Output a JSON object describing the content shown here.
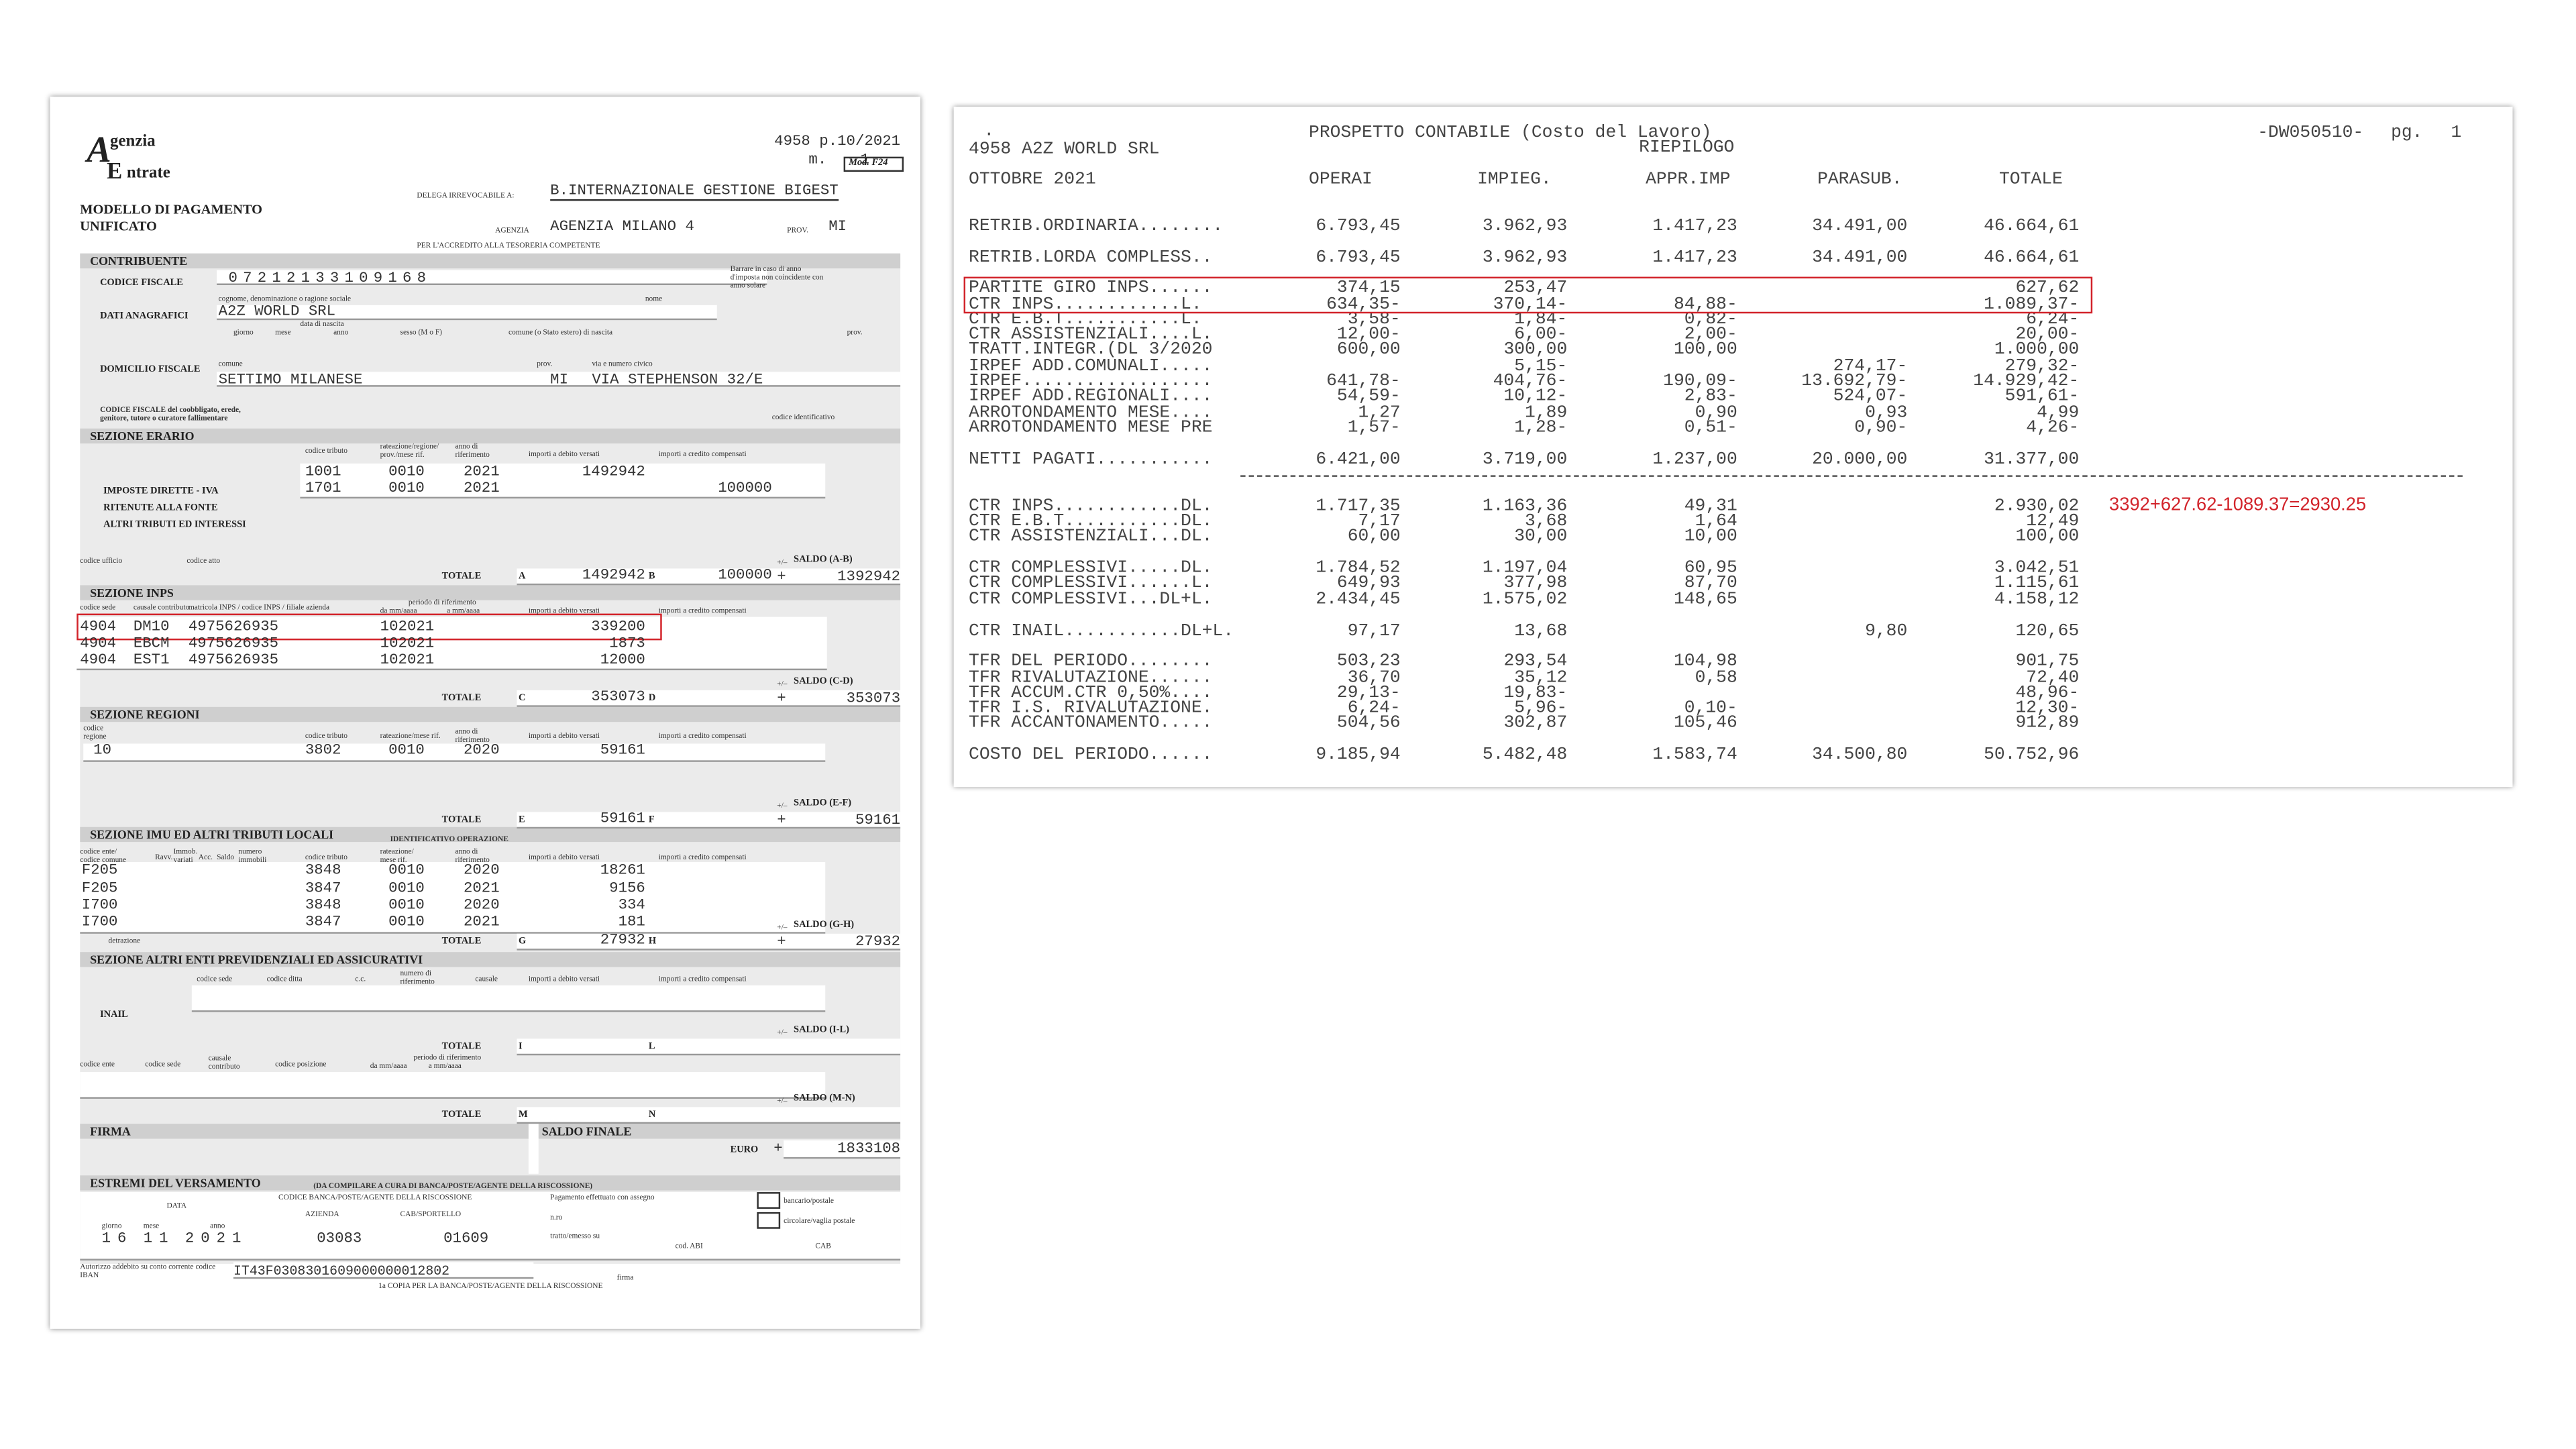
{
  "f24": {
    "logo": {
      "a": "A",
      "genzia": "genzia",
      "e": "E",
      "ntrate": "ntrate"
    },
    "protocol": "4958 p.10/2021",
    "m_label": "m.",
    "m_value": "1",
    "model": "Mod. F24",
    "title": "MODELLO DI PAGAMENTO UNIFICATO",
    "delega_label": "DELEGA IRREVOCABILE A:",
    "delega": "B.INTERNAZIONALE GESTIONE BIGEST",
    "agenzia_label": "AGENZIA",
    "agenzia": "AGENZIA MILANO 4",
    "prov_label": "PROV.",
    "prov": "MI",
    "accredito": "PER L'ACCREDITO ALLA TESORERIA COMPETENTE",
    "contribuente": {
      "header": "CONTRIBUENTE",
      "cf_label": "CODICE FISCALE",
      "cf": "07212133109168",
      "anno_note": "Barrare in caso di anno d'imposta non coincidente con anno solare",
      "anagrafici_label": "DATI ANAGRAFICI",
      "cognome_label": "cognome, denominazione o ragione sociale",
      "nome_label": "nome",
      "cognome": "A2Z WORLD SRL",
      "nascita_label": "data di nascita",
      "giorno_label": "giorno",
      "mese_label": "mese",
      "anno_label": "anno",
      "sesso_label": "sesso (M o F)",
      "comune_nascita_label": "comune (o Stato estero) di nascita",
      "prov_nascita_label": "prov.",
      "domicilio_label": "DOMICILIO FISCALE",
      "comune_label": "comune",
      "prov_label": "prov.",
      "via_label": "via e numero civico",
      "comune": "SETTIMO MILANESE",
      "prov": "MI",
      "via": "VIA STEPHENSON 32/E",
      "coobbligato_label": "CODICE FISCALE del coobbligato, erede, genitore, tutore o curatore fallimentare",
      "identificativo_label": "codice identificativo"
    },
    "erario": {
      "header": "SEZIONE ERARIO",
      "col_tributo": "codice tributo",
      "col_rateazione": "rateazione/regione/ prov./mese rif.",
      "col_anno": "anno di riferimento",
      "col_debito": "importi a debito versati",
      "col_credito": "importi a credito compensati",
      "righe_labels": [
        "IMPOSTE DIRETTE - IVA",
        "RITENUTE ALLA FONTE",
        "ALTRI TRIBUTI ED INTERESSI"
      ],
      "rows": [
        [
          "1001",
          "0010",
          "2021",
          "1492942",
          null
        ],
        [
          "1701",
          "0010",
          "2021",
          null,
          "100000"
        ]
      ],
      "ufficio_label": "codice ufficio",
      "atto_label": "codice atto",
      "totale_label": "TOTALE",
      "a": "A",
      "totale_debito": "1492942",
      "b": "B",
      "totale_credito": "100000",
      "segno": "+/–",
      "saldo_label": "SALDO (A-B)",
      "saldo_segno": "+",
      "saldo": "1392942"
    },
    "inps": {
      "header": "SEZIONE INPS",
      "col_sede": "codice sede",
      "col_causale": "causale contributo",
      "col_matricola": "matricola INPS / codice INPS / filiale azienda",
      "col_periodo": "periodo di riferimento",
      "col_da": "da mm/aaaa",
      "col_a": "a mm/aaaa",
      "col_debito": "importi a debito versati",
      "col_credito": "importi a credito compensati",
      "rows": [
        [
          "4904",
          "DM10",
          "4975626935",
          "102021",
          "339200"
        ],
        [
          "4904",
          "EBCM",
          "4975626935",
          "102021",
          "1873"
        ],
        [
          "4904",
          "EST1",
          "4975626935",
          "102021",
          "12000"
        ]
      ],
      "totale_label": "TOTALE",
      "c": "C",
      "totale_debito": "353073",
      "d": "D",
      "segno": "+/–",
      "saldo_label": "SALDO (C-D)",
      "saldo_segno": "+",
      "saldo": "353073"
    },
    "regioni": {
      "header": "SEZIONE REGIONI",
      "col_regione": "codice regione",
      "col_tributo": "codice tributo",
      "col_rateazione": "rateazione/mese rif.",
      "col_anno": "anno di riferimento",
      "col_debito": "importi a debito versati",
      "col_credito": "importi a credito compensati",
      "rows": [
        [
          "10",
          "3802",
          "0010",
          "2020",
          "59161"
        ]
      ],
      "totale_label": "TOTALE",
      "e": "E",
      "totale_debito": "59161",
      "f": "F",
      "segno": "+/–",
      "saldo_label": "SALDO (E-F)",
      "saldo_segno": "+",
      "saldo": "59161"
    },
    "imu": {
      "header": "SEZIONE IMU ED ALTRI TRIBUTI LOCALI",
      "identificativo_label": "IDENTIFICATIVO OPERAZIONE",
      "col_ente": "codice ente/ codice comune",
      "col_ravv": "Ravv.",
      "col_immob": "Immob. variati",
      "col_acc": "Acc.",
      "col_saldo": "Saldo",
      "col_numero": "numero immobili",
      "col_tributo": "codice tributo",
      "col_rateazione": "rateazione/ mese rif.",
      "col_anno": "anno di riferimento",
      "col_debito": "importi a debito versati",
      "col_credito": "importi a credito compensati",
      "rows": [
        [
          "F205",
          "3848",
          "0010",
          "2020",
          "18261"
        ],
        [
          "F205",
          "3847",
          "0010",
          "2021",
          "9156"
        ],
        [
          "I700",
          "3848",
          "0010",
          "2020",
          "334"
        ],
        [
          "I700",
          "3847",
          "0010",
          "2021",
          "181"
        ]
      ],
      "detrazione_label": "detrazione",
      "totale_label": "TOTALE",
      "g": "G",
      "totale_debito": "27932",
      "h": "H",
      "segno": "+/–",
      "saldo_label": "SALDO (G-H)",
      "saldo_segno": "+",
      "saldo": "27932"
    },
    "altri": {
      "header": "SEZIONE ALTRI ENTI PREVIDENZIALI ED ASSICURATIVI",
      "inail": "INAIL",
      "col_sede": "codice sede",
      "col_ditta": "codice ditta",
      "col_cc": "c.c.",
      "col_riferimento": "numero di riferimento",
      "col_causale": "causale",
      "col_debito": "importi a debito versati",
      "col_credito": "importi a credito compensati",
      "totale1_label": "TOTALE",
      "i": "I",
      "l": "L",
      "segno1": "+/–",
      "saldo1_label": "SALDO (I-L)",
      "col_ente": "codice ente",
      "col_sede2": "codice sede",
      "col_causale2": "causale contributo",
      "col_posizione": "codice posizione",
      "col_periodo": "periodo di riferimento",
      "col_da": "da mm/aaaa",
      "col_a": "a mm/aaaa",
      "totale2_label": "TOTALE",
      "m": "M",
      "n": "N",
      "segno2": "+/–",
      "saldo2_label": "SALDO (M-N)"
    },
    "firma": {
      "header": "FIRMA"
    },
    "saldo_finale": {
      "header": "SALDO FINALE",
      "euro": "EURO",
      "segno": "+",
      "importo": "1833108"
    },
    "versamento": {
      "header": "ESTREMI DEL VERSAMENTO",
      "note": "(DA COMPILARE A CURA DI BANCA/POSTE/AGENTE DELLA RISCOSSIONE)",
      "data_label": "DATA",
      "giorno_label": "giorno",
      "mese_label": "mese",
      "anno_label": "anno",
      "giorno": "16",
      "mese": "11",
      "anno": "2021",
      "banca_label": "CODICE BANCA/POSTE/AGENTE DELLA RISCOSSIONE",
      "azienda_label": "AZIENDA",
      "cab_label": "CAB/SPORTELLO",
      "azienda": "03083",
      "cab": "01609",
      "assegno_label": "Pagamento effettuato con assegno",
      "bancario": "bancario/postale",
      "circolare": "circolare/vaglia postale",
      "nro": "n.ro",
      "tratto": "tratto/emesso su",
      "abi_label": "cod. ABI",
      "cab2_label": "CAB"
    },
    "footer": {
      "autorizzo": "Autorizzo addebito su conto corrente codice IBAN",
      "iban": "IT43F0308301609000000012802",
      "firma": "firma",
      "copia": "1a COPIA PER LA BANCA/POSTE/AGENTE DELLA RISCOSSIONE"
    }
  },
  "prospetto": {
    "dot": ".",
    "title": "PROSPETTO CONTABILE (Costo del Lavoro)",
    "subtitle": "RIEPILOGO",
    "code": "-DW050510-",
    "pg_label": "pg.",
    "pg": "1",
    "company": "4958 A2Z WORLD SRL",
    "period": "OTTOBRE 2021",
    "columns": [
      "OPERAI",
      "IMPIEG.",
      "APPR.IMP",
      "PARASUB.",
      "TOTALE"
    ],
    "rows": [
      {
        "label": "RETRIB.ORDINARIA........",
        "values": [
          "6.793,45",
          "3.962,93",
          "1.417,23",
          "34.491,00",
          "46.664,61"
        ]
      },
      {
        "label": "RETRIB.LORDA COMPLESS..",
        "values": [
          "6.793,45",
          "3.962,93",
          "1.417,23",
          "34.491,00",
          "46.664,61"
        ]
      },
      {
        "label": "PARTITE GIRO INPS......",
        "values": [
          "374,15",
          "253,47",
          null,
          null,
          "627,62"
        ]
      },
      {
        "label": "CTR INPS............L.",
        "values": [
          "634,35-",
          "370,14-",
          "84,88-",
          null,
          "1.089,37-"
        ]
      },
      {
        "label": "CTR E.B.T...........L.",
        "values": [
          "3,58-",
          "1,84-",
          "0,82-",
          null,
          "6,24-"
        ]
      },
      {
        "label": "CTR ASSISTENZIALI....L.",
        "values": [
          "12,00-",
          "6,00-",
          "2,00-",
          null,
          "20,00-"
        ]
      },
      {
        "label": "TRATT.INTEGR.(DL 3/2020",
        "values": [
          "600,00",
          "300,00",
          "100,00",
          null,
          "1.000,00"
        ]
      },
      {
        "label": "IRPEF ADD.COMUNALI.....",
        "values": [
          null,
          "5,15-",
          null,
          "274,17-",
          "279,32-"
        ]
      },
      {
        "label": "IRPEF..................",
        "values": [
          "641,78-",
          "404,76-",
          "190,09-",
          "13.692,79-",
          "14.929,42-"
        ]
      },
      {
        "label": "IRPEF ADD.REGIONALI....",
        "values": [
          "54,59-",
          "10,12-",
          "2,83-",
          "524,07-",
          "591,61-"
        ]
      },
      {
        "label": "ARROTONDAMENTO MESE....",
        "values": [
          "1,27",
          "1,89",
          "0,90",
          "0,93",
          "4,99"
        ]
      },
      {
        "label": "ARROTONDAMENTO MESE PRE",
        "values": [
          "1,57-",
          "1,28-",
          "0,51-",
          "0,90-",
          "4,26-"
        ]
      },
      {
        "label": "NETTI PAGATI...........",
        "values": [
          "6.421,00",
          "3.719,00",
          "1.237,00",
          "20.000,00",
          "31.377,00"
        ]
      },
      {
        "label": "CTR INPS............DL.",
        "values": [
          "1.717,35",
          "1.163,36",
          "49,31",
          null,
          "2.930,02"
        ]
      },
      {
        "label": "CTR E.B.T...........DL.",
        "values": [
          "7,17",
          "3,68",
          "1,64",
          null,
          "12,49"
        ]
      },
      {
        "label": "CTR ASSISTENZIALI...DL.",
        "values": [
          "60,00",
          "30,00",
          "10,00",
          null,
          "100,00"
        ]
      },
      {
        "label": "CTR COMPLESSIVI.....DL.",
        "values": [
          "1.784,52",
          "1.197,04",
          "60,95",
          null,
          "3.042,51"
        ]
      },
      {
        "label": "CTR COMPLESSIVI......L.",
        "values": [
          "649,93",
          "377,98",
          "87,70",
          null,
          "1.115,61"
        ]
      },
      {
        "label": "CTR COMPLESSIVI...DL+L.",
        "values": [
          "2.434,45",
          "1.575,02",
          "148,65",
          null,
          "4.158,12"
        ]
      },
      {
        "label": "CTR INAIL...........DL+L.",
        "values": [
          "97,17",
          "13,68",
          null,
          "9,80",
          "120,65"
        ]
      },
      {
        "label": "TFR DEL PERIODO........",
        "values": [
          "503,23",
          "293,54",
          "104,98",
          null,
          "901,75"
        ]
      },
      {
        "label": "TFR RIVALUTAZIONE......",
        "values": [
          "36,70",
          "35,12",
          "0,58",
          null,
          "72,40"
        ]
      },
      {
        "label": "TFR ACCUM.CTR 0,50%....",
        "values": [
          "29,13-",
          "19,83-",
          null,
          null,
          "48,96-"
        ]
      },
      {
        "label": "TFR I.S. RIVALUTAZIONE.",
        "values": [
          "6,24-",
          "5,96-",
          "0,10-",
          null,
          "12,30-"
        ]
      },
      {
        "label": "TFR ACCANTONAMENTO.....",
        "values": [
          "504,56",
          "302,87",
          "105,46",
          null,
          "912,89"
        ]
      },
      {
        "label": "COSTO DEL PERIODO......",
        "values": [
          "9.185,94",
          "5.482,48",
          "1.583,74",
          "34.500,80",
          "50.752,96"
        ]
      }
    ]
  },
  "annotation": "3392+627.62-1089.37=2930.25"
}
